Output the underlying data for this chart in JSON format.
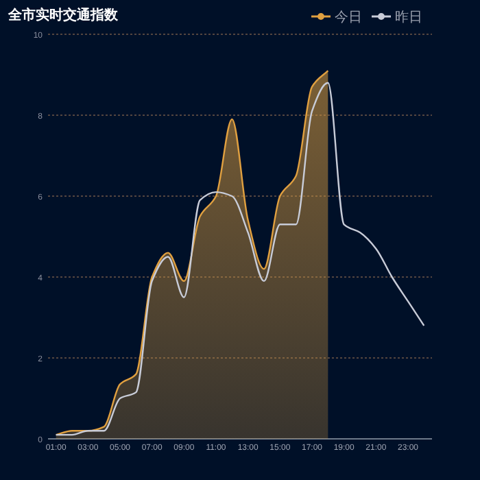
{
  "chart_data": {
    "type": "area",
    "title": "全市实时交通指数",
    "categories": [
      "01:00",
      null,
      "03:00",
      null,
      "05:00",
      null,
      "07:00",
      null,
      "09:00",
      null,
      "11:00",
      null,
      "13:00",
      null,
      "15:00",
      null,
      "17:00",
      null,
      "19:00",
      null,
      "21:00",
      null,
      "23:00",
      null
    ],
    "series": [
      {
        "name": "今日",
        "color": "#e0a040",
        "values": [
          0.1,
          0.2,
          0.2,
          0.3,
          1.35,
          1.6,
          4.0,
          4.6,
          3.9,
          5.5,
          6.0,
          7.9,
          5.4,
          4.2,
          6.0,
          6.5,
          8.7,
          9.1,
          null,
          null,
          null,
          null,
          null,
          null
        ]
      },
      {
        "name": "昨日",
        "type": "line",
        "color": "#c8ccd8",
        "values": [
          0.1,
          0.1,
          0.2,
          0.2,
          1.0,
          1.15,
          3.9,
          4.5,
          3.5,
          5.9,
          6.1,
          6.0,
          5.1,
          3.9,
          5.3,
          5.3,
          8.1,
          8.8,
          5.3,
          5.1,
          4.7,
          4.0,
          3.4,
          2.8
        ]
      }
    ],
    "ylim": [
      0,
      10
    ],
    "yticks": [
      0,
      2,
      4,
      6,
      8,
      10
    ],
    "grid": "y",
    "legend": "top right",
    "marker": "none"
  }
}
